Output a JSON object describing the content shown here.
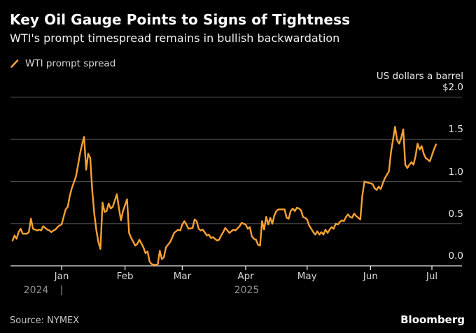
{
  "header": {
    "title": "Key Oil Gauge Points to Signs of Tightness",
    "subtitle": "WTI's prompt timespread remains in bullish backwardation"
  },
  "legend": {
    "label": "WTI prompt spread"
  },
  "y_axis": {
    "unit": "US dollars a barrel",
    "ticks": [
      {
        "label": "$2.0",
        "value": 2.0
      },
      {
        "label": "1.5",
        "value": 1.5
      },
      {
        "label": "1.0",
        "value": 1.0
      },
      {
        "label": "0.5",
        "value": 0.5
      },
      {
        "label": "0.0",
        "value": 0.0
      }
    ]
  },
  "x_axis": {
    "months": [
      {
        "label": "Jan",
        "date": "2025-01-01"
      },
      {
        "label": "Feb",
        "date": "2025-02-01"
      },
      {
        "label": "Mar",
        "date": "2025-03-01"
      },
      {
        "label": "Apr",
        "date": "2025-04-01"
      },
      {
        "label": "May",
        "date": "2025-05-01"
      },
      {
        "label": "Jun",
        "date": "2025-06-01"
      },
      {
        "label": "Jul",
        "date": "2025-07-01"
      }
    ],
    "year_left": "2024",
    "year_separator": "|",
    "year_right": "2025"
  },
  "footer": {
    "source": "Source: NYMEX",
    "brand": "Bloomberg"
  },
  "colors": {
    "background": "#000000",
    "line": "#f7a133",
    "grid": "#4d4d4d",
    "axis": "#e8e8e8",
    "muted": "#8f8f8f"
  },
  "chart_data": {
    "type": "line",
    "title": "Key Oil Gauge Points to Signs of Tightness",
    "subtitle": "WTI's prompt timespread remains in bullish backwardation",
    "ylabel": "US dollars a barrel",
    "ylim": [
      -0.05,
      2.0
    ],
    "yticks": [
      2.0,
      1.5,
      1.0,
      0.5,
      0.0
    ],
    "grid": "horizontal",
    "legend_position": "top-left",
    "series": [
      {
        "name": "WTI prompt spread",
        "color": "#f7a133",
        "points": [
          [
            "2024-12-08",
            0.3
          ],
          [
            "2024-12-09",
            0.36
          ],
          [
            "2024-12-10",
            0.32
          ],
          [
            "2024-12-11",
            0.4
          ],
          [
            "2024-12-12",
            0.44
          ],
          [
            "2024-12-13",
            0.38
          ],
          [
            "2024-12-15",
            0.38
          ],
          [
            "2024-12-16",
            0.4
          ],
          [
            "2024-12-17",
            0.56
          ],
          [
            "2024-12-18",
            0.44
          ],
          [
            "2024-12-19",
            0.43
          ],
          [
            "2024-12-20",
            0.42
          ],
          [
            "2024-12-21",
            0.43
          ],
          [
            "2024-12-22",
            0.42
          ],
          [
            "2024-12-23",
            0.47
          ],
          [
            "2024-12-25",
            0.43
          ],
          [
            "2024-12-26",
            0.42
          ],
          [
            "2024-12-27",
            0.4
          ],
          [
            "2024-12-28",
            0.42
          ],
          [
            "2024-12-29",
            0.43
          ],
          [
            "2024-12-30",
            0.46
          ],
          [
            "2024-12-31",
            0.48
          ],
          [
            "2025-01-01",
            0.49
          ],
          [
            "2025-01-02",
            0.58
          ],
          [
            "2025-01-03",
            0.67
          ],
          [
            "2025-01-04",
            0.7
          ],
          [
            "2025-01-05",
            0.83
          ],
          [
            "2025-01-06",
            0.92
          ],
          [
            "2025-01-08",
            1.06
          ],
          [
            "2025-01-09",
            1.19
          ],
          [
            "2025-01-10",
            1.33
          ],
          [
            "2025-01-11",
            1.44
          ],
          [
            "2025-01-12",
            1.53
          ],
          [
            "2025-01-13",
            1.14
          ],
          [
            "2025-01-14",
            1.33
          ],
          [
            "2025-01-15",
            1.28
          ],
          [
            "2025-01-16",
            0.89
          ],
          [
            "2025-01-17",
            0.61
          ],
          [
            "2025-01-18",
            0.42
          ],
          [
            "2025-01-19",
            0.28
          ],
          [
            "2025-01-20",
            0.2
          ],
          [
            "2025-01-21",
            0.75
          ],
          [
            "2025-01-22",
            0.64
          ],
          [
            "2025-01-23",
            0.65
          ],
          [
            "2025-01-24",
            0.74
          ],
          [
            "2025-01-25",
            0.68
          ],
          [
            "2025-01-26",
            0.7
          ],
          [
            "2025-01-28",
            0.85
          ],
          [
            "2025-01-29",
            0.69
          ],
          [
            "2025-01-30",
            0.54
          ],
          [
            "2025-01-31",
            0.65
          ],
          [
            "2025-02-02",
            0.79
          ],
          [
            "2025-02-03",
            0.39
          ],
          [
            "2025-02-04",
            0.33
          ],
          [
            "2025-02-06",
            0.24
          ],
          [
            "2025-02-07",
            0.26
          ],
          [
            "2025-02-08",
            0.31
          ],
          [
            "2025-02-10",
            0.22
          ],
          [
            "2025-02-11",
            0.15
          ],
          [
            "2025-02-12",
            0.17
          ],
          [
            "2025-02-13",
            0.05
          ],
          [
            "2025-02-14",
            0.02
          ],
          [
            "2025-02-16",
            0.01
          ],
          [
            "2025-02-17",
            0.02
          ],
          [
            "2025-02-18",
            0.18
          ],
          [
            "2025-02-19",
            0.08
          ],
          [
            "2025-02-20",
            0.1
          ],
          [
            "2025-02-21",
            0.22
          ],
          [
            "2025-02-22",
            0.25
          ],
          [
            "2025-02-23",
            0.28
          ],
          [
            "2025-02-24",
            0.33
          ],
          [
            "2025-02-25",
            0.39
          ],
          [
            "2025-02-27",
            0.43
          ],
          [
            "2025-02-28",
            0.42
          ],
          [
            "2025-03-01",
            0.49
          ],
          [
            "2025-03-02",
            0.53
          ],
          [
            "2025-03-03",
            0.49
          ],
          [
            "2025-03-04",
            0.44
          ],
          [
            "2025-03-06",
            0.45
          ],
          [
            "2025-03-07",
            0.55
          ],
          [
            "2025-03-08",
            0.53
          ],
          [
            "2025-03-09",
            0.44
          ],
          [
            "2025-03-10",
            0.42
          ],
          [
            "2025-03-11",
            0.43
          ],
          [
            "2025-03-13",
            0.36
          ],
          [
            "2025-03-14",
            0.37
          ],
          [
            "2025-03-15",
            0.33
          ],
          [
            "2025-03-16",
            0.34
          ],
          [
            "2025-03-18",
            0.3
          ],
          [
            "2025-03-19",
            0.31
          ],
          [
            "2025-03-20",
            0.36
          ],
          [
            "2025-03-21",
            0.4
          ],
          [
            "2025-03-22",
            0.45
          ],
          [
            "2025-03-24",
            0.39
          ],
          [
            "2025-03-26",
            0.43
          ],
          [
            "2025-03-27",
            0.42
          ],
          [
            "2025-03-29",
            0.47
          ],
          [
            "2025-03-30",
            0.51
          ],
          [
            "2025-04-01",
            0.49
          ],
          [
            "2025-04-02",
            0.44
          ],
          [
            "2025-04-03",
            0.46
          ],
          [
            "2025-04-04",
            0.35
          ],
          [
            "2025-04-05",
            0.32
          ],
          [
            "2025-04-06",
            0.31
          ],
          [
            "2025-04-07",
            0.25
          ],
          [
            "2025-04-08",
            0.24
          ],
          [
            "2025-04-09",
            0.53
          ],
          [
            "2025-04-10",
            0.43
          ],
          [
            "2025-04-11",
            0.58
          ],
          [
            "2025-04-12",
            0.49
          ],
          [
            "2025-04-13",
            0.57
          ],
          [
            "2025-04-14",
            0.5
          ],
          [
            "2025-04-15",
            0.6
          ],
          [
            "2025-04-16",
            0.65
          ],
          [
            "2025-04-17",
            0.67
          ],
          [
            "2025-04-18",
            0.67
          ],
          [
            "2025-04-20",
            0.67
          ],
          [
            "2025-04-21",
            0.57
          ],
          [
            "2025-04-22",
            0.56
          ],
          [
            "2025-04-23",
            0.65
          ],
          [
            "2025-04-24",
            0.68
          ],
          [
            "2025-04-25",
            0.65
          ],
          [
            "2025-04-26",
            0.69
          ],
          [
            "2025-04-27",
            0.68
          ],
          [
            "2025-04-28",
            0.66
          ],
          [
            "2025-04-29",
            0.58
          ],
          [
            "2025-04-30",
            0.57
          ],
          [
            "2025-05-01",
            0.55
          ],
          [
            "2025-05-02",
            0.48
          ],
          [
            "2025-05-03",
            0.44
          ],
          [
            "2025-05-04",
            0.4
          ],
          [
            "2025-05-05",
            0.37
          ],
          [
            "2025-05-06",
            0.41
          ],
          [
            "2025-05-07",
            0.37
          ],
          [
            "2025-05-08",
            0.4
          ],
          [
            "2025-05-09",
            0.37
          ],
          [
            "2025-05-10",
            0.43
          ],
          [
            "2025-05-11",
            0.39
          ],
          [
            "2025-05-12",
            0.43
          ],
          [
            "2025-05-13",
            0.46
          ],
          [
            "2025-05-14",
            0.44
          ],
          [
            "2025-05-15",
            0.5
          ],
          [
            "2025-05-16",
            0.49
          ],
          [
            "2025-05-17",
            0.52
          ],
          [
            "2025-05-18",
            0.54
          ],
          [
            "2025-05-19",
            0.53
          ],
          [
            "2025-05-20",
            0.58
          ],
          [
            "2025-05-21",
            0.61
          ],
          [
            "2025-05-22",
            0.58
          ],
          [
            "2025-05-23",
            0.57
          ],
          [
            "2025-05-24",
            0.62
          ],
          [
            "2025-05-25",
            0.59
          ],
          [
            "2025-05-26",
            0.57
          ],
          [
            "2025-05-27",
            0.55
          ],
          [
            "2025-05-28",
            0.83
          ],
          [
            "2025-05-29",
            1.0
          ],
          [
            "2025-05-30",
            0.99
          ],
          [
            "2025-06-01",
            0.98
          ],
          [
            "2025-06-02",
            0.97
          ],
          [
            "2025-06-03",
            0.92
          ],
          [
            "2025-06-04",
            0.9
          ],
          [
            "2025-06-05",
            0.94
          ],
          [
            "2025-06-06",
            0.91
          ],
          [
            "2025-06-07",
            0.98
          ],
          [
            "2025-06-08",
            1.04
          ],
          [
            "2025-06-09",
            1.08
          ],
          [
            "2025-06-10",
            1.12
          ],
          [
            "2025-06-11",
            1.35
          ],
          [
            "2025-06-12",
            1.5
          ],
          [
            "2025-06-13",
            1.65
          ],
          [
            "2025-06-14",
            1.49
          ],
          [
            "2025-06-15",
            1.45
          ],
          [
            "2025-06-16",
            1.52
          ],
          [
            "2025-06-17",
            1.62
          ],
          [
            "2025-06-18",
            1.2
          ],
          [
            "2025-06-19",
            1.16
          ],
          [
            "2025-06-20",
            1.2
          ],
          [
            "2025-06-21",
            1.23
          ],
          [
            "2025-06-22",
            1.2
          ],
          [
            "2025-06-23",
            1.3
          ],
          [
            "2025-06-24",
            1.45
          ],
          [
            "2025-06-25",
            1.38
          ],
          [
            "2025-06-26",
            1.42
          ],
          [
            "2025-06-27",
            1.33
          ],
          [
            "2025-06-28",
            1.28
          ],
          [
            "2025-06-30",
            1.24
          ],
          [
            "2025-07-01",
            1.31
          ],
          [
            "2025-07-02",
            1.38
          ],
          [
            "2025-07-03",
            1.44
          ]
        ]
      }
    ]
  }
}
